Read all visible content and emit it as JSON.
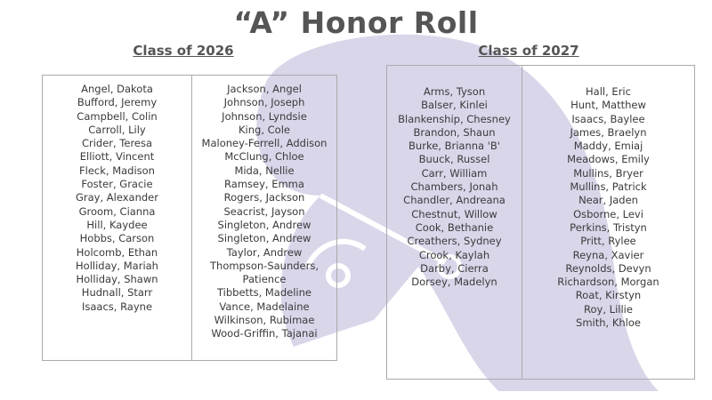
{
  "title": "“A” Honor Roll",
  "colors": {
    "watermark": "#d9d6ea",
    "text": "#3a3a3a",
    "heading": "#555555"
  },
  "watermark_icon": "spartan-helmet-icon",
  "class_2026": {
    "heading": "Class of 2026",
    "columns": [
      [
        "Angel, Dakota",
        "Bufford, Jeremy",
        "Campbell, Colin",
        "Carroll, Lily",
        "Crider, Teresa",
        "Elliott, Vincent",
        "Fleck, Madison",
        "Foster, Gracie",
        "Gray, Alexander",
        "Groom, Cianna",
        "Hill, Kaydee",
        "Hobbs, Carson",
        "Holcomb, Ethan",
        "Holliday, Mariah",
        "Holliday, Shawn",
        "Hudnall, Starr",
        "Isaacs, Rayne"
      ],
      [
        "Jackson, Angel",
        "Johnson, Joseph",
        "Johnson, Lyndsie",
        "King, Cole",
        "Maloney-Ferrell, Addison",
        "McClung, Chloe",
        "Mida, Nellie",
        "Ramsey, Emma",
        "Rogers, Jackson",
        "Seacrist, Jayson",
        "Singleton, Andrew",
        "Singleton, Andrew",
        "Taylor, Andrew",
        "Thompson-Saunders,",
        "Patience",
        "Tibbetts, Madeline",
        "Vance, Madelaine",
        "Wilkinson, Rubimae",
        "Wood-Griffin, Tajanai"
      ]
    ]
  },
  "class_2027": {
    "heading": "Class of 2027",
    "columns": [
      [
        "Arms, Tyson",
        "Balser, Kinlei",
        "Blankenship, Chesney",
        "Brandon, Shaun",
        "Burke, Brianna 'B'",
        "Buuck, Russel",
        "Carr, William",
        "Chambers, Jonah",
        "Chandler, Andreana",
        "Chestnut, Willow",
        "Cook, Bethanie",
        "Creathers, Sydney",
        "Crook, Kaylah",
        "Darby, Cierra",
        "Dorsey, Madelyn"
      ],
      [
        "Hall, Eric",
        "Hunt, Matthew",
        "Isaacs, Baylee",
        "James, Braelyn",
        "Maddy, Emiaj",
        "Meadows, Emily",
        "Mullins, Bryer",
        "Mullins, Patrick",
        "Near, Jaden",
        "Osborne, Levi",
        "Perkins, Tristyn",
        "Pritt, Rylee",
        "Reyna, Xavier",
        "Reynolds, Devyn",
        "Richardson, Morgan",
        "Roat, Kirstyn",
        "Roy, Lillie",
        "Smith, Khloe"
      ]
    ]
  }
}
